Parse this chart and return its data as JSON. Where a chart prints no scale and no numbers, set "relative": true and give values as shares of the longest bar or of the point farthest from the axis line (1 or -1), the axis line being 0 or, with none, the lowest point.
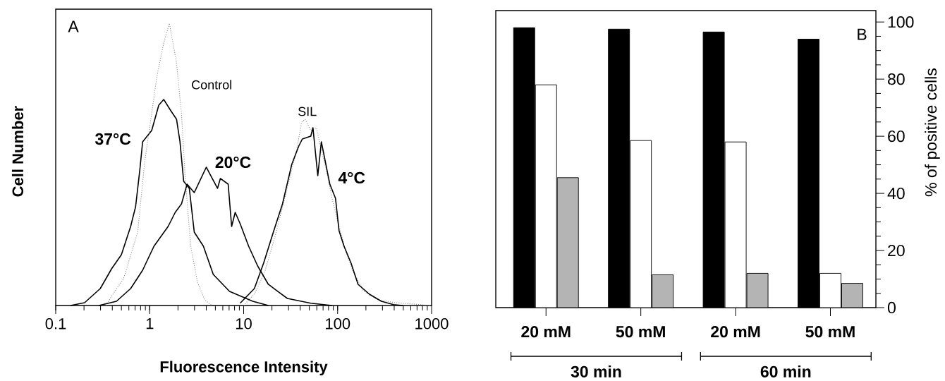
{
  "chart_data": [
    {
      "type": "line",
      "xlabel": "Fluorescence Intensity",
      "ylabel": "Cell Number",
      "annotations": [
        "A"
      ],
      "log": "x",
      "relative": true,
      "xlim": [
        0.1,
        1000
      ],
      "xticks": [
        0.1,
        1,
        10,
        100,
        1000
      ],
      "tick_labels": "x",
      "series": [
        {
          "name": "37°C",
          "color": "#000000",
          "line_style": "solid",
          "x": [
            0.144,
            0.203,
            0.298,
            0.393,
            0.5,
            0.627,
            0.708,
            0.785,
            0.841,
            1.05,
            1.25,
            1.41,
            1.68,
            1.93,
            2.1,
            2.3,
            2.64,
            2.98,
            3.73,
            4.75,
            7.08,
            12.5,
            18.3
          ],
          "values": [
            0,
            0.01,
            0.06,
            0.13,
            0.18,
            0.28,
            0.35,
            0.48,
            0.58,
            0.62,
            0.71,
            0.73,
            0.69,
            0.66,
            0.58,
            0.44,
            0.415,
            0.26,
            0.21,
            0.11,
            0.05,
            0.015,
            0
          ]
        },
        {
          "name": "Control",
          "color": "#8c8c8c",
          "line_style": "dotted",
          "x": [
            0.342,
            0.406,
            0.527,
            0.745,
            0.885,
            1.05,
            1.19,
            1.41,
            1.62,
            1.77,
            1.93,
            2.18,
            2.38,
            2.73,
            3.24,
            3.86,
            4.59
          ],
          "values": [
            0,
            0.04,
            0.095,
            0.26,
            0.51,
            0.68,
            0.81,
            0.93,
            1.0,
            0.93,
            0.86,
            0.68,
            0.46,
            0.21,
            0.08,
            0.02,
            0
          ]
        },
        {
          "name": "20°C",
          "color": "#000000",
          "line_style": "solid",
          "x": [
            0.288,
            0.443,
            0.627,
            0.841,
            1.11,
            1.57,
            1.87,
            2.18,
            2.5,
            2.98,
            4.0,
            5.27,
            5.65,
            6.84,
            7.45,
            8.13,
            9.17,
            11.3,
            14.1,
            18.3,
            23,
            29.2,
            51.8,
            87
          ],
          "values": [
            0,
            0.015,
            0.06,
            0.125,
            0.21,
            0.28,
            0.33,
            0.36,
            0.43,
            0.4,
            0.49,
            0.415,
            0.45,
            0.43,
            0.28,
            0.33,
            0.29,
            0.21,
            0.14,
            0.075,
            0.05,
            0.025,
            0.008,
            0
          ]
        },
        {
          "name": "SIL",
          "color": "#8c8c8c",
          "line_style": "dotted",
          "x": [
            10,
            13,
            16.8,
            21.8,
            28.3,
            36.6,
            41.4,
            45.1,
            51.8,
            59.4,
            67.1,
            75.9,
            87.1,
            103.5,
            123,
            146,
            190,
            268,
            414,
            638,
            982
          ],
          "values": [
            0,
            0.04,
            0.12,
            0.25,
            0.4,
            0.55,
            0.65,
            0.66,
            0.62,
            0.63,
            0.55,
            0.48,
            0.38,
            0.28,
            0.19,
            0.12,
            0.05,
            0.02,
            0.01,
            0.005,
            0
          ]
        },
        {
          "name": "4°C",
          "color": "#000000",
          "line_style": "solid",
          "x": [
            9.17,
            13,
            16.3,
            20.7,
            25.9,
            32.5,
            38.6,
            42.1,
            51.8,
            54.6,
            61.5,
            67.1,
            82.6,
            94.9,
            103.5,
            117,
            139,
            165,
            218,
            292,
            393,
            492
          ],
          "values": [
            0.008,
            0.06,
            0.15,
            0.26,
            0.36,
            0.5,
            0.565,
            0.59,
            0.6,
            0.63,
            0.46,
            0.58,
            0.43,
            0.38,
            0.265,
            0.21,
            0.15,
            0.075,
            0.04,
            0.015,
            0.003,
            0
          ]
        }
      ]
    },
    {
      "type": "bar",
      "ylabel": "% of positive cells",
      "annotations": [
        "B",
        "30 min",
        "60 min"
      ],
      "categories": [
        "20 mM",
        "50 mM",
        "20 mM",
        "50 mM"
      ],
      "ylim": [
        0,
        104
      ],
      "yticks": [
        0,
        20,
        40,
        60,
        80,
        100
      ],
      "series": [
        {
          "color": "#000000",
          "values": [
            98,
            97.5,
            96.5,
            94
          ]
        },
        {
          "color": "#ffffff",
          "values": [
            78,
            58.5,
            58,
            12
          ]
        },
        {
          "color": "#b4b4b4",
          "values": [
            45.5,
            11.5,
            12,
            8.5
          ]
        }
      ]
    }
  ]
}
